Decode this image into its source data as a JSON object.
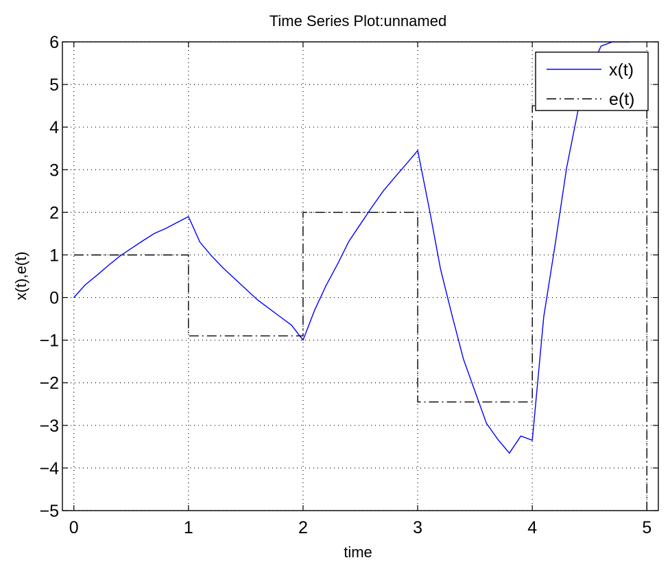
{
  "chart_data": {
    "type": "line",
    "title": "Time Series Plot:unnamed",
    "xlabel": "time",
    "ylabel": "x(t),e(t)",
    "xlim": [
      -0.1,
      5.1
    ],
    "ylim": [
      -5,
      6
    ],
    "xticks": [
      0,
      1,
      2,
      3,
      4,
      5
    ],
    "yticks": [
      -5,
      -4,
      -3,
      -2,
      -1,
      0,
      1,
      2,
      3,
      4,
      5,
      6
    ],
    "xtick_labels": [
      "0",
      "1",
      "2",
      "3",
      "4",
      "5"
    ],
    "ytick_labels": [
      "−5",
      "−4",
      "−3",
      "−2",
      "−1",
      "0",
      "1",
      "2",
      "3",
      "4",
      "5",
      "6"
    ],
    "grid": true,
    "legend_position": "top-right",
    "series": [
      {
        "name": "x(t)",
        "color": "#0000ff",
        "style": "solid",
        "x": [
          0,
          0.1,
          0.2,
          0.3,
          0.4,
          0.5,
          0.6,
          0.7,
          0.8,
          0.9,
          1.0,
          1.1,
          1.2,
          1.3,
          1.4,
          1.5,
          1.6,
          1.7,
          1.8,
          1.9,
          2.0,
          2.1,
          2.2,
          2.3,
          2.4,
          2.5,
          2.6,
          2.7,
          2.8,
          2.9,
          3.0,
          3.1,
          3.2,
          3.3,
          3.4,
          3.5,
          3.6,
          3.7,
          3.8,
          3.9,
          4.0,
          4.1,
          4.2,
          4.3,
          4.4,
          4.5,
          4.6,
          4.7,
          4.8,
          4.85
        ],
        "y": [
          0,
          0.3,
          0.52,
          0.75,
          0.97,
          1.15,
          1.33,
          1.5,
          1.62,
          1.76,
          1.9,
          1.3,
          0.98,
          0.7,
          0.45,
          0.2,
          -0.05,
          -0.25,
          -0.45,
          -0.65,
          -1.0,
          -0.3,
          0.28,
          0.78,
          1.32,
          1.72,
          2.12,
          2.5,
          2.82,
          3.13,
          3.45,
          2.1,
          0.66,
          -0.42,
          -1.45,
          -2.2,
          -2.95,
          -3.33,
          -3.65,
          -3.25,
          -3.35,
          -0.45,
          1.25,
          3.05,
          4.4,
          5.3,
          5.9,
          6.0,
          6.0,
          6.0
        ]
      },
      {
        "name": "e(t)",
        "color": "#000000",
        "style": "dash-dot",
        "x": [
          0,
          1,
          1,
          2,
          2,
          3,
          3,
          4,
          4,
          5,
          5
        ],
        "y": [
          1,
          1,
          -0.9,
          -0.9,
          2,
          2,
          -2.45,
          -2.45,
          4.5,
          4.5,
          -5
        ]
      }
    ]
  }
}
